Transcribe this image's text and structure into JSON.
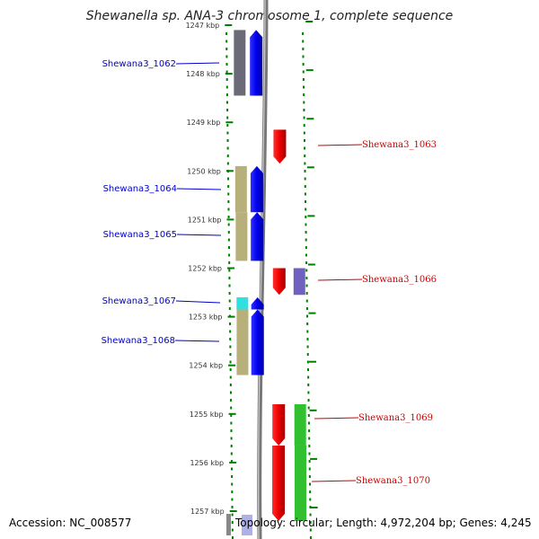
{
  "title": "Shewanella sp. ANA-3 chromosome 1, complete sequence",
  "footer": {
    "accession": "Accession: NC_008577",
    "topology": "Topology: circular; Length: 4,972,204 bp; Genes: 4,245"
  },
  "axis": {
    "ticks": [
      {
        "kbp": 1247,
        "label": "1247 kbp"
      },
      {
        "kbp": 1248,
        "label": "1248 kbp"
      },
      {
        "kbp": 1249,
        "label": "1249 kbp"
      },
      {
        "kbp": 1250,
        "label": "1250 kbp"
      },
      {
        "kbp": 1251,
        "label": "1251 kbp"
      },
      {
        "kbp": 1252,
        "label": "1252 kbp"
      },
      {
        "kbp": 1253,
        "label": "1253 kbp"
      },
      {
        "kbp": 1254,
        "label": "1254 kbp"
      },
      {
        "kbp": 1255,
        "label": "1255 kbp"
      },
      {
        "kbp": 1256,
        "label": "1256 kbp"
      },
      {
        "kbp": 1257,
        "label": "1257 kbp"
      }
    ]
  },
  "genes": [
    {
      "name": "Shewana3_1062",
      "strand": "+",
      "start_kbp": 1247.1,
      "end_kbp": 1248.45,
      "cog_color": "#6b6b78"
    },
    {
      "name": "Shewana3_1063",
      "strand": "-",
      "start_kbp": 1249.15,
      "end_kbp": 1249.85,
      "cog_color": null
    },
    {
      "name": "Shewana3_1064",
      "strand": "+",
      "start_kbp": 1249.9,
      "end_kbp": 1250.85,
      "cog_color": "#b8b07a"
    },
    {
      "name": "Shewana3_1065",
      "strand": "+",
      "start_kbp": 1250.85,
      "end_kbp": 1251.85,
      "cog_color": "#b8b07a"
    },
    {
      "name": "Shewana3_1066",
      "strand": "-",
      "start_kbp": 1252.0,
      "end_kbp": 1252.55,
      "cog_color": "#7060c0"
    },
    {
      "name": "Shewana3_1067",
      "strand": "+",
      "start_kbp": 1252.6,
      "end_kbp": 1252.85,
      "cog_color": "#30e0e0"
    },
    {
      "name": "Shewana3_1068",
      "strand": "+",
      "start_kbp": 1252.85,
      "end_kbp": 1254.2,
      "cog_color": "#b8b07a"
    },
    {
      "name": "Shewana3_1069",
      "strand": "-",
      "start_kbp": 1254.8,
      "end_kbp": 1255.65,
      "cog_color": "#30c030"
    },
    {
      "name": "Shewana3_1070",
      "strand": "-",
      "start_kbp": 1255.65,
      "end_kbp": 1257.2,
      "cog_color": "#30c030"
    }
  ],
  "colors": {
    "forward_gene": "#0000ee",
    "reverse_gene": "#ee0000",
    "left_label": "#0000cc",
    "right_label": "#cc0000",
    "track_dots": "#008000",
    "backbone": "#888888"
  }
}
